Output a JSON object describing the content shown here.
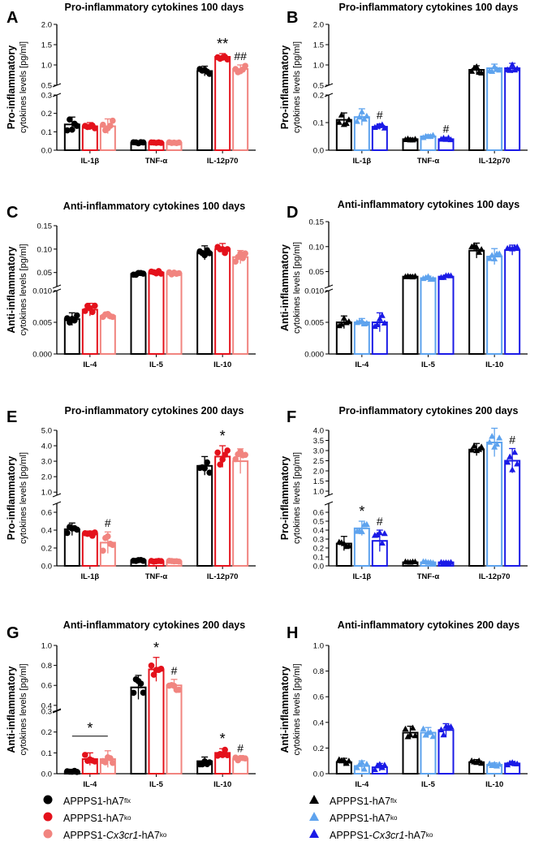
{
  "colors": {
    "black": "#000000",
    "red": "#e4111b",
    "pink": "#f1847f",
    "darkblue": "#1a1ae6",
    "lightblue": "#5ea3ee"
  },
  "legend_left": [
    {
      "base": "APPPS1-hA7",
      "sup": "flx",
      "italic": "",
      "rest": ""
    },
    {
      "base": "APPPS1-hA7",
      "sup": "ko",
      "italic": "",
      "rest": ""
    },
    {
      "base": "APPPS1-",
      "sup": "ko",
      "italic": "Cx3cr1",
      "rest": "-hA7"
    }
  ],
  "legend_right": [
    {
      "base": "APPPS1-hA7",
      "sup": "flx",
      "italic": "",
      "rest": ""
    },
    {
      "base": "APPPS1-hA7",
      "sup": "ko",
      "italic": "",
      "rest": ""
    },
    {
      "base": "APPPS1-",
      "sup": "ko",
      "italic": "Cx3cr1",
      "rest": "-hA7"
    }
  ],
  "chart_data": [
    {
      "letter": "A",
      "type": "bar",
      "title": "Pro-inflammatory cytokines 100 days",
      "ylabel1": "Pro-inflammatory",
      "ylabel2": "cytokines levels [pg/ml]",
      "categories": [
        "IL-1β",
        "TNF-α",
        "IL-12p70"
      ],
      "series": [
        {
          "name": "APPPS1-hA7flx",
          "values": [
            0.14,
            0.04,
            0.85
          ]
        },
        {
          "name": "APPPS1-hA7ko",
          "values": [
            0.13,
            0.04,
            1.2
          ]
        },
        {
          "name": "APPPS1-Cx3cr1-hA7ko",
          "values": [
            0.13,
            0.04,
            0.9
          ]
        }
      ],
      "errors": [
        [
          0.04,
          0.004,
          0.12
        ],
        [
          0.02,
          0.003,
          0.08
        ],
        [
          0.04,
          0.004,
          0.1
        ]
      ],
      "lower_ticks": [
        0,
        0.1,
        0.2,
        0.3
      ],
      "upper_ticks": [
        0.5,
        1.0,
        1.5,
        2.0
      ],
      "lower_range": [
        0,
        0.3
      ],
      "upper_range": [
        0.5,
        2.0
      ],
      "annotations": [
        {
          "cat": 2,
          "series": 1,
          "text": "**"
        },
        {
          "cat": 2,
          "series": 2,
          "text": "##"
        }
      ]
    },
    {
      "letter": "B",
      "type": "bar",
      "title": "Pro-inflammatory cytokines 100 days",
      "ylabel1": "Pro-inflammatory",
      "ylabel2": "cytokines levels [pg/ml]",
      "categories": [
        "IL-1β",
        "TNF-α",
        "IL-12p70"
      ],
      "series": [
        {
          "name": "APPPS1-hA7flx",
          "values": [
            0.11,
            0.04,
            0.88
          ]
        },
        {
          "name": "APPPS1-hA7ko",
          "values": [
            0.12,
            0.05,
            0.92
          ]
        },
        {
          "name": "APPPS1-Cx3cr1-hA7ko",
          "values": [
            0.085,
            0.04,
            0.92
          ]
        }
      ],
      "errors": [
        [
          0.025,
          0.004,
          0.1
        ],
        [
          0.03,
          0.006,
          0.1
        ],
        [
          0.01,
          0.006,
          0.12
        ]
      ],
      "lower_ticks": [
        0,
        0.1,
        0.2
      ],
      "upper_ticks": [
        0.5,
        1.0,
        1.5,
        2.0
      ],
      "lower_range": [
        0,
        0.2
      ],
      "upper_range": [
        0.5,
        2.0
      ],
      "annotations": [
        {
          "cat": 0,
          "series": 2,
          "text": "#"
        },
        {
          "cat": 1,
          "series": 2,
          "text": "#"
        }
      ]
    },
    {
      "letter": "C",
      "type": "bar",
      "title": "Anti-inflammatory cytokines 100 days",
      "ylabel1": "Anti-inflammatory",
      "ylabel2": "cytokines levels [pg/ml]",
      "categories": [
        "IL-4",
        "IL-5",
        "IL-10"
      ],
      "series": [
        {
          "name": "APPPS1-hA7flx",
          "values": [
            0.0055,
            0.047,
            0.092
          ]
        },
        {
          "name": "APPPS1-hA7ko",
          "values": [
            0.007,
            0.05,
            0.1
          ]
        },
        {
          "name": "APPPS1-Cx3cr1-hA7ko",
          "values": [
            0.006,
            0.048,
            0.083
          ]
        }
      ],
      "errors": [
        [
          0.001,
          0.004,
          0.015
        ],
        [
          0.001,
          0.004,
          0.012
        ],
        [
          0.0004,
          0.003,
          0.014
        ]
      ],
      "lower_ticks": [
        0.0,
        0.005,
        0.01
      ],
      "upper_ticks": [
        0.05,
        0.1,
        0.15
      ],
      "lower_range": [
        0,
        0.01
      ],
      "upper_range": [
        0.02,
        0.15
      ],
      "tick_labels_lower": [
        "0.000",
        "0.005",
        "0.010"
      ],
      "tick_labels_upper": [
        "0.05",
        "0.10",
        "0.15"
      ],
      "annotations": []
    },
    {
      "letter": "D",
      "type": "bar",
      "title": "Anti-inflammatory cytokines 100 days",
      "ylabel1": "Anti-inflammatory",
      "ylabel2": "cytokines levels [pg/ml]",
      "categories": [
        "IL-4",
        "IL-5",
        "IL-10"
      ],
      "series": [
        {
          "name": "APPPS1-hA7flx",
          "values": [
            0.005,
            0.04,
            0.092
          ]
        },
        {
          "name": "APPPS1-hA7ko",
          "values": [
            0.005,
            0.037,
            0.08
          ]
        },
        {
          "name": "APPPS1-Cx3cr1-hA7ko",
          "values": [
            0.005,
            0.04,
            0.093
          ]
        }
      ],
      "errors": [
        [
          0.001,
          0.003,
          0.015
        ],
        [
          0.0006,
          0.004,
          0.016
        ],
        [
          0.0015,
          0.003,
          0.01
        ]
      ],
      "lower_ticks": [
        0.0,
        0.005,
        0.01
      ],
      "upper_ticks": [
        0.05,
        0.1,
        0.15
      ],
      "lower_range": [
        0,
        0.01
      ],
      "upper_range": [
        0.02,
        0.15
      ],
      "tick_labels_lower": [
        "0.000",
        "0.005",
        "0.010"
      ],
      "tick_labels_upper": [
        "0.05",
        "0.10",
        "0.15"
      ],
      "annotations": []
    },
    {
      "letter": "E",
      "type": "bar",
      "title": "Pro-inflammatory cytokines 200 days",
      "ylabel1": "Pro-inflammatory",
      "ylabel2": "cytokines levels [pg/ml]",
      "categories": [
        "IL-1β",
        "TNF-α",
        "IL-12p70"
      ],
      "series": [
        {
          "name": "APPPS1-hA7flx",
          "values": [
            0.41,
            0.06,
            2.7
          ]
        },
        {
          "name": "APPPS1-hA7ko",
          "values": [
            0.36,
            0.05,
            3.3
          ]
        },
        {
          "name": "APPPS1-Cx3cr1-hA7ko",
          "values": [
            0.26,
            0.05,
            3.0
          ]
        }
      ],
      "errors": [
        [
          0.07,
          0.01,
          0.6
        ],
        [
          0.03,
          0.008,
          0.7
        ],
        [
          0.12,
          0.01,
          0.8
        ]
      ],
      "lower_ticks": [
        0,
        0.2,
        0.4,
        0.6
      ],
      "upper_ticks": [
        1.0,
        2.0,
        3.0,
        4.0,
        5.0
      ],
      "lower_range": [
        0,
        0.7
      ],
      "upper_range": [
        0.8,
        5.0
      ],
      "tick_labels_upper": [
        "1.0",
        "2.0",
        "3.0",
        "4.0",
        "5.0"
      ],
      "tick_labels_lower": [
        "0.0",
        "0.2",
        "0.4",
        "0.6"
      ],
      "annotations": [
        {
          "cat": 0,
          "series": 2,
          "text": "#"
        },
        {
          "cat": 2,
          "series": 1,
          "text": "*"
        }
      ]
    },
    {
      "letter": "F",
      "type": "bar",
      "title": "Pro-inflammatory cytokines 200 days",
      "ylabel1": "Pro-inflammatory",
      "ylabel2": "cytokines levels [pg/ml]",
      "categories": [
        "IL-1β",
        "TNF-α",
        "IL-12p70"
      ],
      "series": [
        {
          "name": "APPPS1-hA7flx",
          "values": [
            0.25,
            0.04,
            3.05
          ]
        },
        {
          "name": "APPPS1-hA7ko",
          "values": [
            0.42,
            0.04,
            3.4
          ]
        },
        {
          "name": "APPPS1-Cx3cr1-hA7ko",
          "values": [
            0.28,
            0.04,
            2.5
          ]
        }
      ],
      "errors": [
        [
          0.08,
          0.008,
          0.3
        ],
        [
          0.08,
          0.01,
          0.7
        ],
        [
          0.12,
          0.01,
          0.6
        ]
      ],
      "lower_ticks": [
        0,
        0.1,
        0.2,
        0.3,
        0.4,
        0.5,
        0.6
      ],
      "upper_ticks": [
        1.0,
        1.5,
        2.0,
        2.5,
        3.0,
        3.5,
        4.0
      ],
      "lower_range": [
        0,
        0.7
      ],
      "upper_range": [
        0.8,
        4.0
      ],
      "tick_labels_upper": [
        "1.0",
        "1.5",
        "2.0",
        "2.5",
        "3.0",
        "3.5",
        "4.0"
      ],
      "tick_labels_lower": [
        "0.0",
        "0.1",
        "0.2",
        "0.3",
        "0.4",
        "0.5",
        "0.6"
      ],
      "annotations": [
        {
          "cat": 0,
          "series": 1,
          "text": "*"
        },
        {
          "cat": 0,
          "series": 2,
          "text": "#"
        },
        {
          "cat": 2,
          "series": 2,
          "text": "#"
        }
      ]
    },
    {
      "letter": "G",
      "type": "bar",
      "title": "Anti-inflammatory cytokines 200 days",
      "ylabel1": "Anti-inflammatory",
      "ylabel2": "cytokines levels [pg/ml]",
      "categories": [
        "IL-4",
        "IL-5",
        "IL-10"
      ],
      "series": [
        {
          "name": "APPPS1-hA7flx",
          "values": [
            0.01,
            0.58,
            0.06
          ]
        },
        {
          "name": "APPPS1-hA7ko",
          "values": [
            0.07,
            0.76,
            0.1
          ]
        },
        {
          "name": "APPPS1-Cx3cr1-hA7ko",
          "values": [
            0.07,
            0.6,
            0.07
          ]
        }
      ],
      "errors": [
        [
          0.005,
          0.12,
          0.02
        ],
        [
          0.03,
          0.12,
          0.02
        ],
        [
          0.04,
          0.06,
          0.01
        ]
      ],
      "lower_ticks": [
        0,
        0.1,
        0.2,
        0.3
      ],
      "upper_ticks": [
        0.4,
        0.6,
        0.8,
        1.0
      ],
      "lower_range": [
        0,
        0.3
      ],
      "upper_range": [
        0.35,
        1.0
      ],
      "tick_labels_lower": [
        "0.0",
        "0.1",
        "0.2",
        "0.3"
      ],
      "tick_labels_upper": [
        "0.4",
        "0.6",
        "0.8",
        "1.0"
      ],
      "annotations": [
        {
          "cat": 1,
          "series": 1,
          "text": "*"
        },
        {
          "cat": 1,
          "series": 2,
          "text": "#"
        },
        {
          "cat": 2,
          "series": 1,
          "text": "*"
        },
        {
          "cat": 2,
          "series": 2,
          "text": "#"
        }
      ],
      "bracket": {
        "cat": 0,
        "text": "*"
      }
    },
    {
      "letter": "H",
      "type": "bar",
      "title": "Anti-inflammatory cytokines 200 days",
      "ylabel1": "Anti-inflammatory",
      "ylabel2": "cytokines levels [pg/ml]",
      "categories": [
        "IL-4",
        "IL-5",
        "IL-10"
      ],
      "series": [
        {
          "name": "APPPS1-hA7flx",
          "values": [
            0.09,
            0.32,
            0.09
          ]
        },
        {
          "name": "APPPS1-hA7ko",
          "values": [
            0.06,
            0.32,
            0.07
          ]
        },
        {
          "name": "APPPS1-Cx3cr1-hA7ko",
          "values": [
            0.05,
            0.34,
            0.08
          ]
        }
      ],
      "errors": [
        [
          0.03,
          0.05,
          0.02
        ],
        [
          0.04,
          0.04,
          0.015
        ],
        [
          0.03,
          0.05,
          0.015
        ]
      ],
      "ticks": [
        0.0,
        0.2,
        0.4,
        0.6,
        0.8,
        1.0
      ],
      "range": [
        0,
        1.0
      ],
      "tick_labels": [
        "0.0",
        "0.2",
        "0.4",
        "0.6",
        "0.8",
        "1.0"
      ],
      "annotations": []
    }
  ]
}
